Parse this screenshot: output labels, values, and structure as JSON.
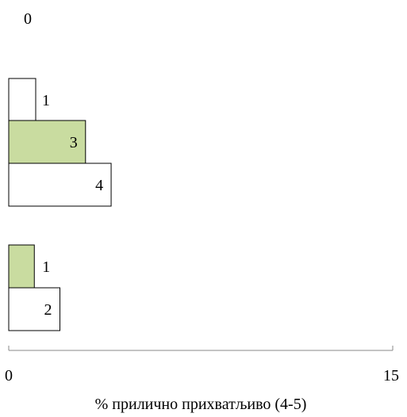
{
  "chart_data": {
    "type": "bar",
    "orientation": "horizontal",
    "title": "",
    "xlabel": "% прилично прихватљиво (4-5)",
    "ylabel": "",
    "xlim": [
      0,
      15
    ],
    "x_ticks": [
      "0",
      "15"
    ],
    "grid": false,
    "legend": "none",
    "colors": {
      "green": "#c9dca0",
      "white": "#ffffff",
      "stroke": "#000000",
      "axis": "#888888"
    },
    "groups": [
      {
        "bars": [
          {
            "value": 0,
            "label": "0",
            "color": "green"
          },
          {
            "value": 1,
            "label": "1",
            "color": "white"
          }
        ]
      },
      {
        "bars": [
          {
            "value": 3,
            "label": "3",
            "color": "green"
          },
          {
            "value": 4,
            "label": "4",
            "color": "white"
          }
        ]
      },
      {
        "bars": [
          {
            "value": 1,
            "label": "1",
            "color": "green"
          },
          {
            "value": 2,
            "label": "2",
            "color": "white"
          }
        ]
      }
    ]
  }
}
